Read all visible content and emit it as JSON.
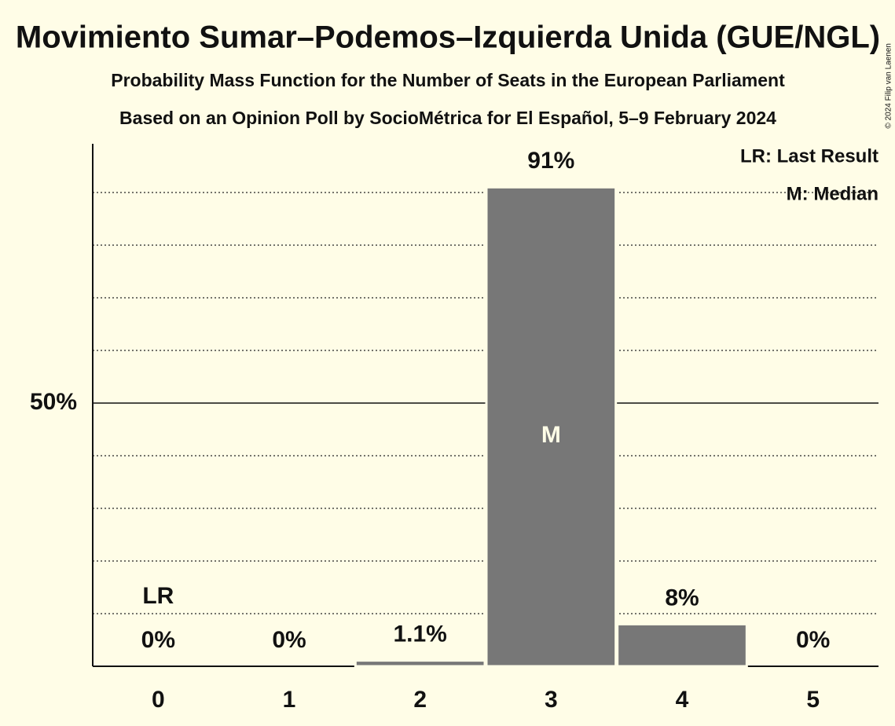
{
  "chart_data": {
    "type": "bar",
    "title": "Movimiento Sumar–Podemos–Izquierda Unida (GUE/NGL)",
    "subtitle": "Probability Mass Function for the Number of Seats in the European Parliament",
    "subtitle2": "Based on an Opinion Poll by SocioMétrica for El Español, 5–9 February 2024",
    "copyright": "© 2024 Filip van Laenen",
    "categories": [
      "0",
      "1",
      "2",
      "3",
      "4",
      "5"
    ],
    "values": [
      0,
      0,
      1.1,
      91,
      8,
      0
    ],
    "value_labels": [
      "0%",
      "0%",
      "1.1%",
      "91%",
      "8%",
      "0%"
    ],
    "color": "#777777",
    "ylim": [
      0,
      100
    ],
    "yticks": [
      {
        "value": 50,
        "label": "50%"
      }
    ],
    "minor_gridlines": [
      10,
      20,
      30,
      40,
      60,
      70,
      80,
      90
    ],
    "last_result": {
      "label": "LR",
      "category": "0"
    },
    "median": {
      "label": "M",
      "category": "3"
    },
    "legend": [
      "LR: Last Result",
      "M: Median"
    ]
  }
}
